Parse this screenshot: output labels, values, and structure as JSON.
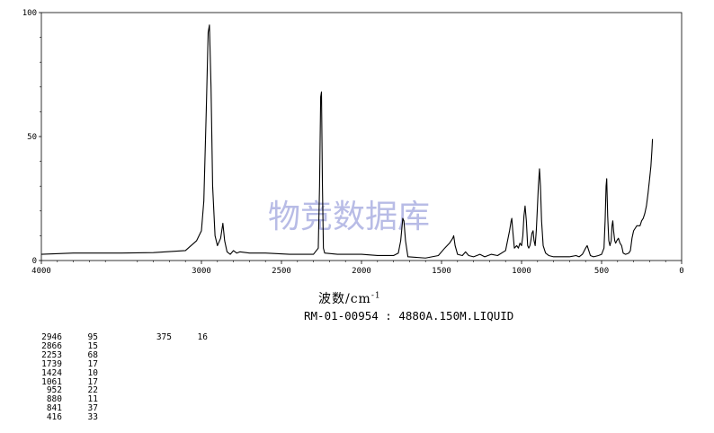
{
  "chart_data": {
    "type": "line",
    "title": "",
    "xlabel": "波数/cm",
    "xlabel_sup": "-1",
    "ylabel": "",
    "xlim": [
      4000,
      0
    ],
    "ylim": [
      0,
      100
    ],
    "x_ticks": [
      "4000",
      "3000",
      "2500",
      "2000",
      "1500",
      "1000",
      "500",
      "0"
    ],
    "y_ticks": [
      "100",
      "50",
      "0"
    ],
    "watermark": "物竞数据库",
    "sample_label": "RM-01-00954 : 4880A.150M.LIQUID",
    "series": [
      {
        "points": [
          [
            4000,
            2.5
          ],
          [
            3800,
            3
          ],
          [
            3500,
            3
          ],
          [
            3300,
            3.2
          ],
          [
            3100,
            4
          ],
          [
            3030,
            8
          ],
          [
            3000,
            12
          ],
          [
            2985,
            24
          ],
          [
            2970,
            60
          ],
          [
            2958,
            92
          ],
          [
            2950,
            95
          ],
          [
            2940,
            70
          ],
          [
            2930,
            30
          ],
          [
            2915,
            10
          ],
          [
            2900,
            6
          ],
          [
            2880,
            9
          ],
          [
            2866,
            15
          ],
          [
            2855,
            8
          ],
          [
            2840,
            3.5
          ],
          [
            2820,
            2.5
          ],
          [
            2800,
            4
          ],
          [
            2780,
            3
          ],
          [
            2760,
            3.5
          ],
          [
            2700,
            3
          ],
          [
            2600,
            3
          ],
          [
            2450,
            2.5
          ],
          [
            2400,
            2.5
          ],
          [
            2300,
            2.5
          ],
          [
            2270,
            5
          ],
          [
            2262,
            30
          ],
          [
            2255,
            66
          ],
          [
            2250,
            68
          ],
          [
            2244,
            30
          ],
          [
            2238,
            5
          ],
          [
            2230,
            3
          ],
          [
            2150,
            2.5
          ],
          [
            2000,
            2.5
          ],
          [
            1900,
            2
          ],
          [
            1800,
            2
          ],
          [
            1770,
            3
          ],
          [
            1755,
            8
          ],
          [
            1742,
            17
          ],
          [
            1735,
            16
          ],
          [
            1725,
            8
          ],
          [
            1710,
            1.5
          ],
          [
            1600,
            1
          ],
          [
            1520,
            2
          ],
          [
            1480,
            5
          ],
          [
            1450,
            7
          ],
          [
            1430,
            9
          ],
          [
            1424,
            10
          ],
          [
            1415,
            6
          ],
          [
            1400,
            2.5
          ],
          [
            1370,
            2
          ],
          [
            1350,
            3.5
          ],
          [
            1330,
            2
          ],
          [
            1300,
            1.5
          ],
          [
            1260,
            2.5
          ],
          [
            1230,
            1.5
          ],
          [
            1190,
            2.5
          ],
          [
            1150,
            2
          ],
          [
            1100,
            4
          ],
          [
            1075,
            12
          ],
          [
            1065,
            16
          ],
          [
            1061,
            17
          ],
          [
            1055,
            12
          ],
          [
            1045,
            5
          ],
          [
            1030,
            6
          ],
          [
            1020,
            5
          ],
          [
            1010,
            7
          ],
          [
            1000,
            6
          ],
          [
            992,
            10
          ],
          [
            985,
            18
          ],
          [
            978,
            22
          ],
          [
            970,
            16
          ],
          [
            962,
            6
          ],
          [
            955,
            5
          ],
          [
            948,
            6
          ],
          [
            942,
            8
          ],
          [
            935,
            11
          ],
          [
            928,
            12
          ],
          [
            922,
            8
          ],
          [
            915,
            6
          ],
          [
            908,
            12
          ],
          [
            902,
            20
          ],
          [
            895,
            30
          ],
          [
            888,
            37
          ],
          [
            882,
            30
          ],
          [
            875,
            16
          ],
          [
            865,
            6
          ],
          [
            850,
            3
          ],
          [
            830,
            2
          ],
          [
            800,
            1.5
          ],
          [
            750,
            1.5
          ],
          [
            700,
            1.5
          ],
          [
            660,
            2
          ],
          [
            640,
            1.5
          ],
          [
            620,
            2.5
          ],
          [
            600,
            5
          ],
          [
            590,
            6
          ],
          [
            580,
            4
          ],
          [
            570,
            2
          ],
          [
            550,
            1.5
          ],
          [
            520,
            2
          ],
          [
            500,
            2.5
          ],
          [
            485,
            5
          ],
          [
            478,
            16
          ],
          [
            472,
            30
          ],
          [
            468,
            33
          ],
          [
            462,
            18
          ],
          [
            455,
            8
          ],
          [
            448,
            6
          ],
          [
            440,
            8
          ],
          [
            435,
            14
          ],
          [
            430,
            16
          ],
          [
            425,
            12
          ],
          [
            418,
            8
          ],
          [
            412,
            7
          ],
          [
            405,
            8
          ],
          [
            395,
            9
          ],
          [
            385,
            7
          ],
          [
            375,
            6
          ],
          [
            365,
            3
          ],
          [
            350,
            2.5
          ],
          [
            330,
            3
          ],
          [
            320,
            4
          ],
          [
            310,
            9
          ],
          [
            300,
            12
          ],
          [
            290,
            13
          ],
          [
            280,
            14
          ],
          [
            270,
            14
          ],
          [
            260,
            14
          ],
          [
            250,
            16
          ],
          [
            240,
            17
          ],
          [
            230,
            19
          ],
          [
            220,
            22
          ],
          [
            210,
            27
          ],
          [
            200,
            33
          ],
          [
            192,
            38
          ],
          [
            186,
            44
          ],
          [
            182,
            49
          ]
        ]
      }
    ]
  },
  "peak_table": {
    "rows": [
      {
        "wavenumber": "2946",
        "value": "95"
      },
      {
        "wavenumber": "2866",
        "value": "15"
      },
      {
        "wavenumber": "2253",
        "value": "68"
      },
      {
        "wavenumber": "1739",
        "value": "17"
      },
      {
        "wavenumber": "1424",
        "value": "10"
      },
      {
        "wavenumber": "1061",
        "value": "17"
      },
      {
        "wavenumber": "952",
        "value": "22"
      },
      {
        "wavenumber": "880",
        "value": "11"
      },
      {
        "wavenumber": "841",
        "value": "37"
      },
      {
        "wavenumber": "416",
        "value": "33"
      }
    ],
    "extra_rows": [
      {
        "wavenumber": "375",
        "value": "16"
      }
    ]
  }
}
